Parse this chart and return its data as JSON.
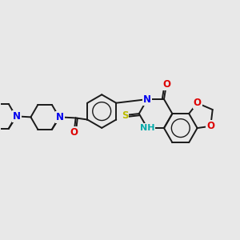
{
  "background_color": "#e8e8e8",
  "bond_color": "#1a1a1a",
  "bond_lw": 1.4,
  "atom_colors": {
    "N": "#0000ee",
    "O": "#dd0000",
    "S": "#bbbb00",
    "NH": "#00aaaa"
  },
  "font_size": 8.5
}
